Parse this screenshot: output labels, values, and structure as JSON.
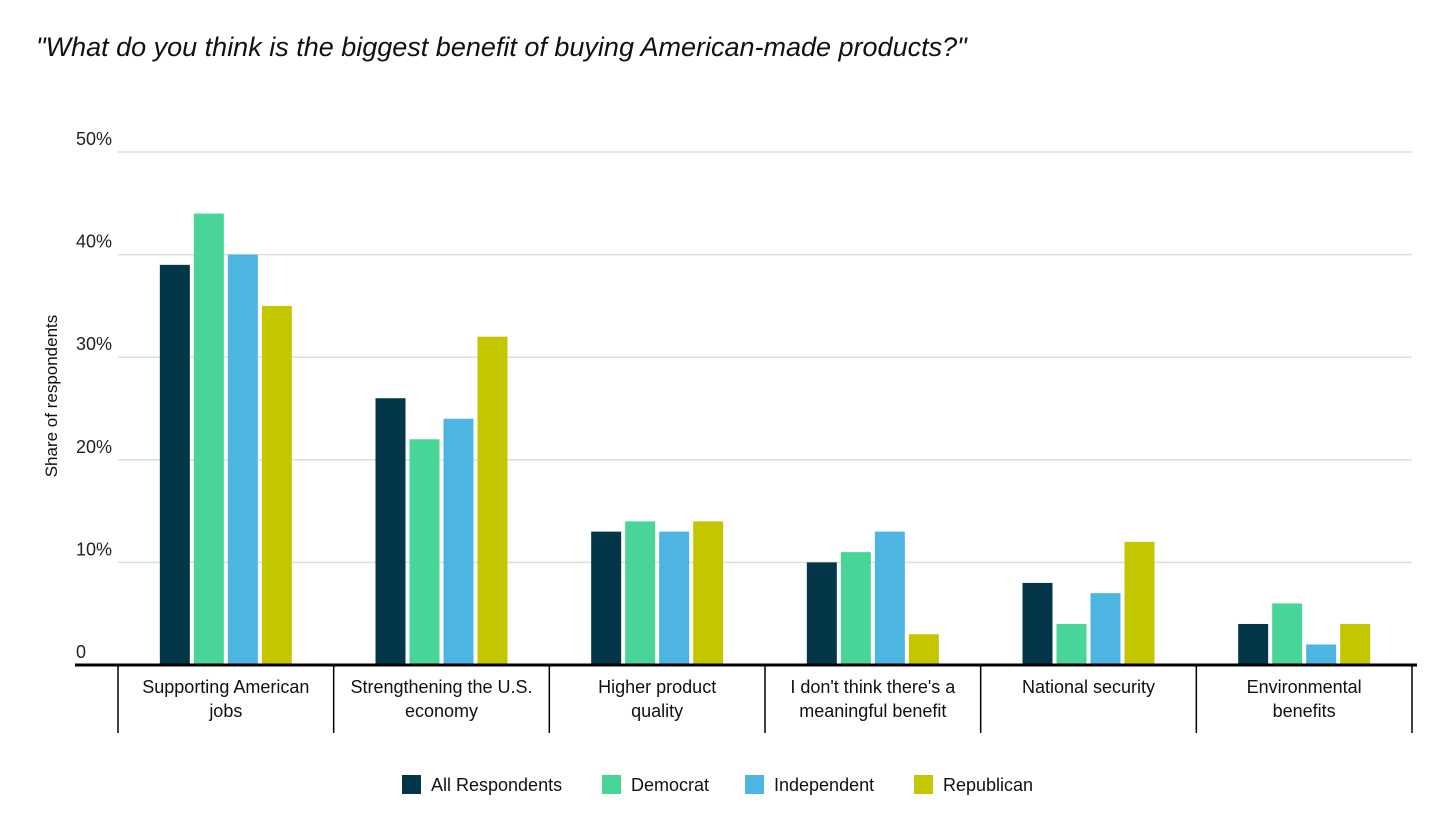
{
  "chart_data": {
    "type": "bar",
    "title": "\"What do you think is the biggest benefit of buying American-made products?\"",
    "ylabel": "Share of respondents",
    "xlabel": "",
    "ylim": [
      0,
      50
    ],
    "yticks": [
      {
        "value": 0,
        "label": "0"
      },
      {
        "value": 10,
        "label": "10%"
      },
      {
        "value": 20,
        "label": "20%"
      },
      {
        "value": 30,
        "label": "30%"
      },
      {
        "value": 40,
        "label": "40%"
      },
      {
        "value": 50,
        "label": "50%"
      }
    ],
    "grid": true,
    "legend_position": "bottom",
    "categories": [
      [
        "Supporting American",
        "jobs"
      ],
      [
        "Strengthening the U.S.",
        "economy"
      ],
      [
        "Higher product",
        "quality"
      ],
      [
        "I don't think there's a",
        "meaningful benefit"
      ],
      [
        "National security"
      ],
      [
        "Environmental",
        "benefits"
      ]
    ],
    "series": [
      {
        "name": "All Respondents",
        "color": "#04364a",
        "values": [
          39,
          26,
          13,
          10,
          8,
          4
        ]
      },
      {
        "name": "Democrat",
        "color": "#48d597",
        "values": [
          44,
          22,
          14,
          11,
          4,
          6
        ]
      },
      {
        "name": "Independent",
        "color": "#4cb5e2",
        "values": [
          40,
          24,
          13,
          13,
          7,
          2
        ]
      },
      {
        "name": "Republican",
        "color": "#c4c600",
        "values": [
          35,
          32,
          14,
          3,
          12,
          4
        ]
      }
    ]
  }
}
